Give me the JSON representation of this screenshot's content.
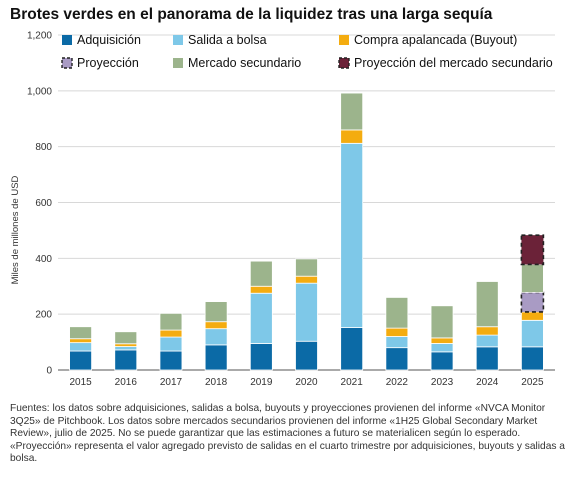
{
  "chart_data": {
    "type": "bar",
    "stacked": true,
    "title": "Brotes verdes en el panorama de la liquidez tras una larga sequía",
    "ylabel": "Miles de millones de USD",
    "xlabel": "",
    "ylim": [
      0,
      1200
    ],
    "yticks": [
      "0",
      "200",
      "400",
      "600",
      "800",
      "1,000",
      "1,200"
    ],
    "ytick_values": [
      0,
      200,
      400,
      600,
      800,
      1000,
      1200
    ],
    "grid": true,
    "legend_position": "top",
    "categories": [
      "2015",
      "2016",
      "2017",
      "2018",
      "2019",
      "2020",
      "2021",
      "2022",
      "2023",
      "2024",
      "2025"
    ],
    "series": [
      {
        "name": "Adquisición",
        "color": "#0b6aa6",
        "values": [
          68,
          72,
          68,
          90,
          95,
          103,
          152,
          80,
          65,
          83,
          83
        ]
      },
      {
        "name": "Salida a bolsa",
        "color": "#7ec8e8",
        "values": [
          30,
          12,
          50,
          58,
          180,
          208,
          660,
          40,
          30,
          42,
          95
        ]
      },
      {
        "name": "Compra apalancada (Buyout)",
        "color": "#f4ac10",
        "values": [
          14,
          10,
          25,
          25,
          25,
          25,
          48,
          30,
          20,
          30,
          30
        ]
      },
      {
        "name": "Proyección",
        "color": "#a99bc4",
        "pattern": "dashed",
        "values": [
          0,
          0,
          0,
          0,
          0,
          0,
          0,
          0,
          0,
          0,
          70
        ]
      },
      {
        "name": "Mercado secundario",
        "color": "#9cb48c",
        "values": [
          43,
          43,
          60,
          72,
          90,
          62,
          132,
          110,
          115,
          162,
          100
        ]
      },
      {
        "name": "Proyección del mercado secundario",
        "color": "#6b2238",
        "pattern": "dashed",
        "values": [
          0,
          0,
          0,
          0,
          0,
          0,
          0,
          0,
          0,
          0,
          105
        ]
      }
    ]
  },
  "footnote": "Fuentes: los datos sobre adquisiciones, salidas a bolsa, buyouts y proyecciones provienen del informe «NVCA Monitor 3Q25» de Pitchbook. Los datos sobre mercados secundarios provienen del informe «1H25 Global Secondary Market Review», julio de 2025. No se puede garantizar que las estimaciones a futuro se materialicen según lo esperado. «Proyección» representa el valor agregado previsto de salidas en el cuarto trimestre por adquisiciones, buyouts y salidas a bolsa."
}
